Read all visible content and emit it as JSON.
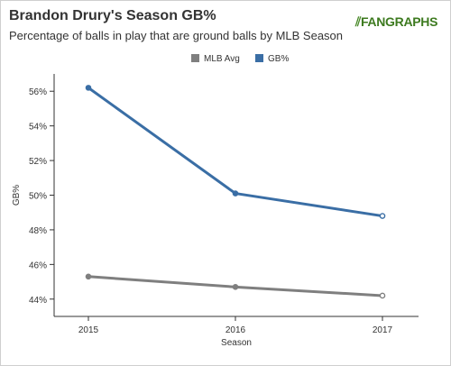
{
  "header": {
    "title": "Brandon Drury's Season GB%",
    "subtitle": "Percentage of balls in play that are ground balls by MLB Season",
    "logo_text": "FANGRAPHS"
  },
  "chart_data": {
    "type": "line",
    "title": "Brandon Drury's Season GB%",
    "subtitle": "Percentage of balls in play that are ground balls by MLB Season",
    "xlabel": "Season",
    "ylabel": "GB%",
    "categories": [
      "2015",
      "2016",
      "2017"
    ],
    "yticks": [
      "44%",
      "46%",
      "48%",
      "50%",
      "52%",
      "54%",
      "56%"
    ],
    "ylim": [
      43,
      57
    ],
    "grid": false,
    "legend_position": "top-center",
    "series": [
      {
        "name": "MLB Avg",
        "values": [
          45.3,
          44.7,
          44.2
        ],
        "color": "#7f7f7f"
      },
      {
        "name": "GB%",
        "values": [
          56.2,
          50.1,
          48.8
        ],
        "color": "#3a6ea5"
      }
    ]
  }
}
